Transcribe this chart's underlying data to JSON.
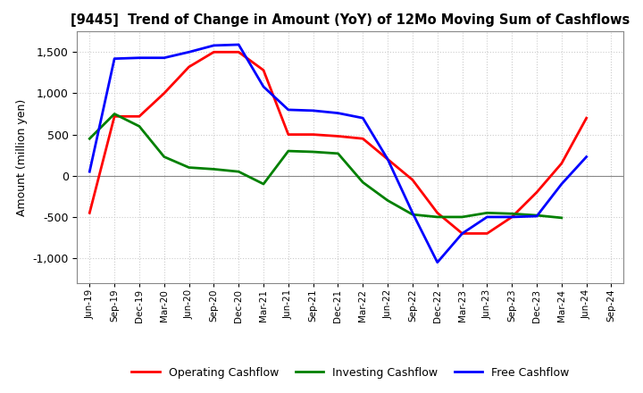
{
  "title": "[9445]  Trend of Change in Amount (YoY) of 12Mo Moving Sum of Cashflows",
  "ylabel": "Amount (million yen)",
  "background_color": "#ffffff",
  "grid_color": "#cccccc",
  "ylim": [
    -1300,
    1750
  ],
  "yticks": [
    -1000,
    -500,
    0,
    500,
    1000,
    1500
  ],
  "x_labels": [
    "Jun-19",
    "Sep-19",
    "Dec-19",
    "Mar-20",
    "Jun-20",
    "Sep-20",
    "Dec-20",
    "Mar-21",
    "Jun-21",
    "Sep-21",
    "Dec-21",
    "Mar-22",
    "Jun-22",
    "Sep-22",
    "Dec-22",
    "Mar-23",
    "Jun-23",
    "Sep-23",
    "Dec-23",
    "Mar-24",
    "Jun-24",
    "Sep-24"
  ],
  "operating": [
    -450,
    720,
    720,
    1000,
    1320,
    1500,
    1500,
    1280,
    500,
    500,
    480,
    450,
    200,
    -50,
    -450,
    -700,
    -700,
    -500,
    -200,
    150,
    700,
    null
  ],
  "investing": [
    450,
    750,
    600,
    230,
    100,
    80,
    50,
    -100,
    300,
    290,
    270,
    -80,
    -300,
    -470,
    -500,
    -500,
    -450,
    -460,
    -480,
    -510,
    null,
    null
  ],
  "free": [
    50,
    1420,
    1430,
    1430,
    1500,
    1580,
    1590,
    1080,
    800,
    790,
    760,
    700,
    200,
    -450,
    -1050,
    -700,
    -500,
    -500,
    -490,
    -100,
    230,
    null
  ],
  "operating_color": "#ff0000",
  "investing_color": "#008000",
  "free_color": "#0000ff",
  "line_width": 2.0
}
